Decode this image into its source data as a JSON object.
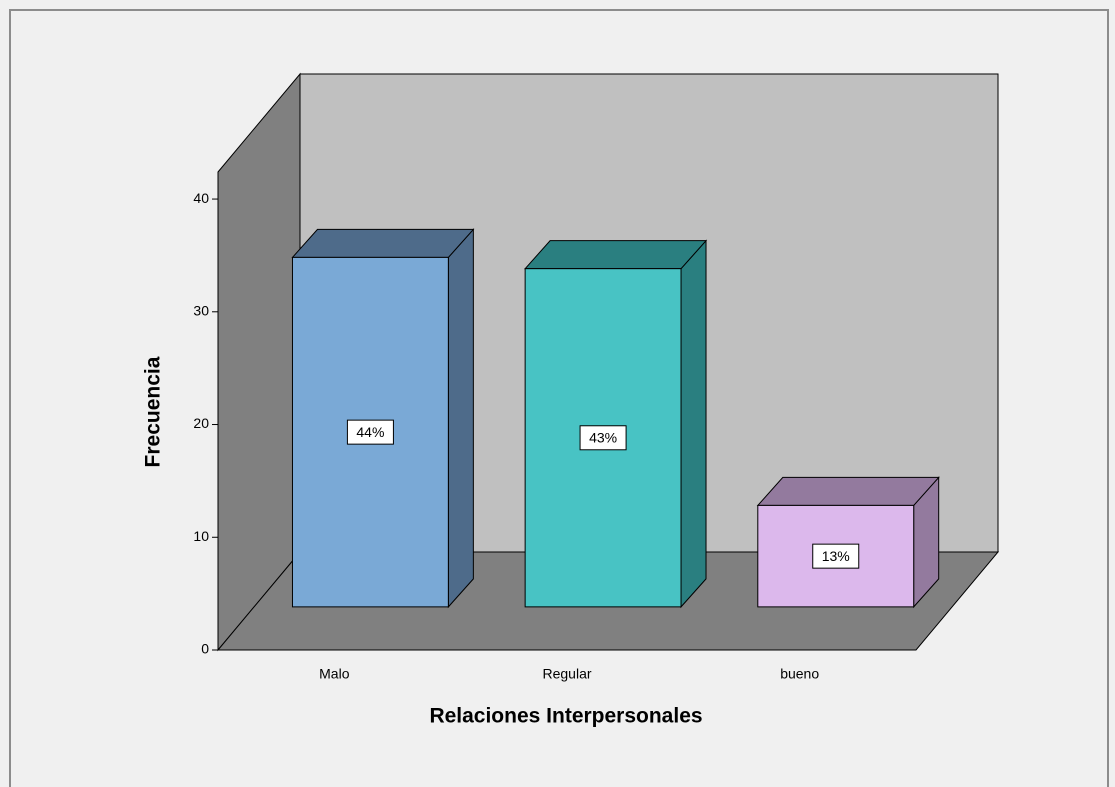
{
  "chart_data": {
    "type": "bar3d",
    "x_label": "Relaciones Interpersonales",
    "y_label": "Frecuencia",
    "categories": [
      "Malo",
      "Regular",
      "bueno"
    ],
    "values": [
      31,
      30,
      9
    ],
    "percent_labels": [
      "44%",
      "43%",
      "13%"
    ],
    "colors": [
      "#7aa9d6",
      "#48c3c4",
      "#dcb8ec"
    ],
    "side_colors": [
      "#4e6b8a",
      "#2a7f80",
      "#937a9e"
    ],
    "ylim": [
      0,
      42.4
    ],
    "yticks": [
      0,
      10,
      20,
      30,
      40
    ]
  }
}
